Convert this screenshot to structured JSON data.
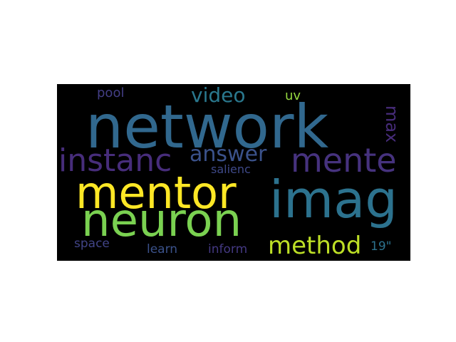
{
  "words": [
    {
      "text": "network",
      "color": "#31688e",
      "weight": 1.0
    },
    {
      "text": "mentor",
      "color": "#fde725",
      "weight": 0.85
    },
    {
      "text": "imag",
      "color": "#2c728e",
      "weight": 0.82
    },
    {
      "text": "neuron",
      "color": "#7ad151",
      "weight": 0.78
    },
    {
      "text": "mente",
      "color": "#46327e",
      "weight": 0.55
    },
    {
      "text": "instanc",
      "color": "#472d7b",
      "weight": 0.5
    },
    {
      "text": "answer",
      "color": "#3b528b",
      "weight": 0.38
    },
    {
      "text": "method",
      "color": "#bddf26",
      "weight": 0.38
    },
    {
      "text": "video",
      "color": "#2a788e",
      "weight": 0.3
    },
    {
      "text": "max",
      "color": "#472c7a",
      "weight": 0.25
    },
    {
      "text": "pool",
      "color": "#433e85",
      "weight": 0.18
    },
    {
      "text": "uv",
      "color": "#95d840",
      "weight": 0.16
    },
    {
      "text": "salienc",
      "color": "#3e4989",
      "weight": 0.14
    },
    {
      "text": "space",
      "color": "#414487",
      "weight": 0.16
    },
    {
      "text": "learn",
      "color": "#3b528b",
      "weight": 0.16
    },
    {
      "text": "inform",
      "color": "#443983",
      "weight": 0.16
    },
    {
      "text": "19\"",
      "color": "#2c728e",
      "weight": 0.16
    }
  ]
}
